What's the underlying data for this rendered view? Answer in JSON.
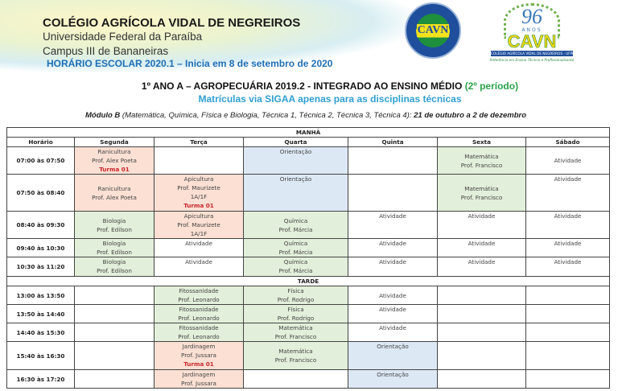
{
  "header": {
    "school": "COLÉGIO AGRÍCOLA VIDAL DE NEGREIROS",
    "university": "Universidade Federal da Paraíba",
    "campus": "Campus III de Bananeiras",
    "schedule_line": "HORÁRIO ESCOLAR 2020.1 – Inicia em 8 de setembro de 2020",
    "logo1_text": "CAVN",
    "logo2": {
      "number": "96",
      "anos": "ANOS",
      "name": "CAVN",
      "band": "COLÉGIO AGRÍCOLA VIDAL DE NEGREIROS - UFPB",
      "slogan": "Referência em Ensino Técnico e Profissionalizante"
    }
  },
  "title": {
    "main": "1º ANO A – AGROPECUÁRIA 2019.2 - INTEGRADO AO ENSINO MÉDIO ",
    "period": "(2º período)"
  },
  "subtitle": "Matrículas via SIGAA apenas para as disciplinas técnicas",
  "module": {
    "name": "Módulo B",
    "subjects": " (Matemática, Química, Física e Biologia, Técnica 1, Técnica 2, Técnica 3, Técnica 4): ",
    "dates": "21 de outubro a 2 de dezembro"
  },
  "colors": {
    "technical": "#fbe0d3",
    "core": "#e2efda",
    "orientation": "#dde8f5",
    "turma": "#c8262d",
    "subtitle": "#2f9fd1",
    "schedule_line": "#1f6fb5"
  },
  "table": {
    "columns": [
      "Horário",
      "Segunda",
      "Terça",
      "Quarta",
      "Quinta",
      "Sexta",
      "Sábado"
    ],
    "sections": [
      {
        "label": "MANHÃ",
        "rows": [
          {
            "time": "07:00 às 07:50",
            "cells": [
              {
                "lines": [
                  "Ranicultura",
                  "Prof. Alex Poeta"
                ],
                "turma": "Turma 01",
                "bg": "s",
                "v": "top"
              },
              {
                "lines": [],
                "bg": "",
                "v": "top"
              },
              {
                "lines": [
                  "Orientação"
                ],
                "bg": "b",
                "v": "top"
              },
              {
                "lines": [],
                "bg": "",
                "v": "top"
              },
              {
                "lines": [
                  "Matemática",
                  "Prof. Francisco"
                ],
                "bg": "g",
                "v": "mid"
              },
              {
                "lines": [
                  "Atividade"
                ],
                "bg": "",
                "v": "mid"
              }
            ]
          },
          {
            "time": "07:50 às 08:40",
            "cells": [
              {
                "lines": [
                  "Ranicultura",
                  "Prof. Alex Poeta"
                ],
                "bg": "s",
                "v": "mid"
              },
              {
                "lines": [
                  "Apicultura",
                  "Prof. Maurizete",
                  "1A/1F"
                ],
                "turma": "Turma 01",
                "bg": "s",
                "v": "top"
              },
              {
                "lines": [
                  "Orientação"
                ],
                "bg": "b",
                "v": "top"
              },
              {
                "lines": [],
                "bg": "",
                "v": "top"
              },
              {
                "lines": [
                  "Matemática",
                  "Prof. Francisco"
                ],
                "bg": "g",
                "v": "mid"
              },
              {
                "lines": [
                  "Atividade"
                ],
                "bg": "",
                "v": "top"
              }
            ]
          },
          {
            "time": "08:40 às 09:30",
            "cells": [
              {
                "lines": [
                  "Biologia",
                  "Prof. Edilson"
                ],
                "bg": "g",
                "v": "mid"
              },
              {
                "lines": [
                  "Apicultura",
                  "Prof. Maurizete",
                  "1A/1F"
                ],
                "bg": "s",
                "v": "top"
              },
              {
                "lines": [
                  "Química",
                  "Prof. Márcia"
                ],
                "bg": "g",
                "v": "mid"
              },
              {
                "lines": [
                  "Atividade"
                ],
                "bg": "",
                "v": "top"
              },
              {
                "lines": [
                  "Atividade"
                ],
                "bg": "",
                "v": "top"
              },
              {
                "lines": [
                  "Atividade"
                ],
                "bg": "",
                "v": "top"
              }
            ]
          },
          {
            "time": "09:40 às 10:30",
            "cells": [
              {
                "lines": [
                  "Biologia",
                  "Prof. Edilson"
                ],
                "bg": "g",
                "v": "top"
              },
              {
                "lines": [
                  "Atividade"
                ],
                "bg": "",
                "v": "top"
              },
              {
                "lines": [
                  "Química",
                  "Prof. Márcia"
                ],
                "bg": "g",
                "v": "top"
              },
              {
                "lines": [
                  "Atividade"
                ],
                "bg": "",
                "v": "top"
              },
              {
                "lines": [
                  "Atividade"
                ],
                "bg": "",
                "v": "top"
              },
              {
                "lines": [
                  "Atividade"
                ],
                "bg": "",
                "v": "top"
              }
            ]
          },
          {
            "time": "10:30 às 11:20",
            "cells": [
              {
                "lines": [
                  "Biologia",
                  "Prof. Edilson"
                ],
                "bg": "g",
                "v": "top"
              },
              {
                "lines": [
                  "Atividade"
                ],
                "bg": "",
                "v": "top"
              },
              {
                "lines": [
                  "Química",
                  "Prof. Márcia"
                ],
                "bg": "g",
                "v": "top"
              },
              {
                "lines": [
                  "Atividade"
                ],
                "bg": "",
                "v": "top"
              },
              {
                "lines": [
                  "Atividade"
                ],
                "bg": "",
                "v": "top"
              },
              {
                "lines": [
                  "Atividade"
                ],
                "bg": "",
                "v": "top"
              }
            ]
          }
        ]
      },
      {
        "label": "TARDE",
        "rows": [
          {
            "time": "13:00 às 13:50",
            "cells": [
              {
                "lines": [],
                "bg": "",
                "v": "top"
              },
              {
                "lines": [
                  "Fitossanidade",
                  "Prof. Leonardo"
                ],
                "bg": "g",
                "v": "top"
              },
              {
                "lines": [
                  "Física",
                  "Prof. Rodrigo"
                ],
                "bg": "g",
                "v": "top"
              },
              {
                "lines": [
                  "Atividade"
                ],
                "bg": "",
                "v": "mid"
              },
              {
                "lines": [],
                "bg": "",
                "v": "top"
              },
              {
                "lines": [],
                "bg": "",
                "v": "top"
              }
            ]
          },
          {
            "time": "13:50 às 14:40",
            "cells": [
              {
                "lines": [],
                "bg": "",
                "v": "top"
              },
              {
                "lines": [
                  "Fitossanidade",
                  "Prof. Leonardo"
                ],
                "bg": "g",
                "v": "top"
              },
              {
                "lines": [
                  "Física",
                  "Prof. Rodrigo"
                ],
                "bg": "g",
                "v": "top"
              },
              {
                "lines": [
                  "Atividade"
                ],
                "bg": "",
                "v": "top"
              },
              {
                "lines": [],
                "bg": "",
                "v": "top"
              },
              {
                "lines": [],
                "bg": "",
                "v": "top"
              }
            ]
          },
          {
            "time": "14:40 às 15:30",
            "cells": [
              {
                "lines": [],
                "bg": "",
                "v": "top"
              },
              {
                "lines": [
                  "Fitossanidade",
                  "Prof. Leonardo"
                ],
                "bg": "g",
                "v": "top"
              },
              {
                "lines": [
                  "Matemática",
                  "Prof. Francisco"
                ],
                "bg": "g",
                "v": "top"
              },
              {
                "lines": [
                  "Atividade"
                ],
                "bg": "",
                "v": "top"
              },
              {
                "lines": [],
                "bg": "",
                "v": "top"
              },
              {
                "lines": [],
                "bg": "",
                "v": "top"
              }
            ]
          },
          {
            "time": "15:40 às 16:30",
            "cells": [
              {
                "lines": [],
                "bg": "",
                "v": "top"
              },
              {
                "lines": [
                  "Jardinagem",
                  "Prof. Jussara"
                ],
                "turma": "Turma 01",
                "bg": "s",
                "v": "top"
              },
              {
                "lines": [
                  "Matemática",
                  "Prof. Francisco"
                ],
                "bg": "g",
                "v": "mid"
              },
              {
                "lines": [
                  "Orientação"
                ],
                "bg": "b",
                "v": "top"
              },
              {
                "lines": [],
                "bg": "",
                "v": "top"
              },
              {
                "lines": [],
                "bg": "",
                "v": "top"
              }
            ]
          },
          {
            "time": "16:30 às 17:20",
            "cells": [
              {
                "lines": [],
                "bg": "",
                "v": "top"
              },
              {
                "lines": [
                  "Jardinagem",
                  "Prof. Jussara"
                ],
                "bg": "s",
                "v": "top"
              },
              {
                "lines": [],
                "bg": "",
                "v": "top"
              },
              {
                "lines": [
                  "Orientação"
                ],
                "bg": "b",
                "v": "top"
              },
              {
                "lines": [],
                "bg": "",
                "v": "top"
              },
              {
                "lines": [],
                "bg": "",
                "v": "top"
              }
            ]
          }
        ]
      }
    ]
  }
}
